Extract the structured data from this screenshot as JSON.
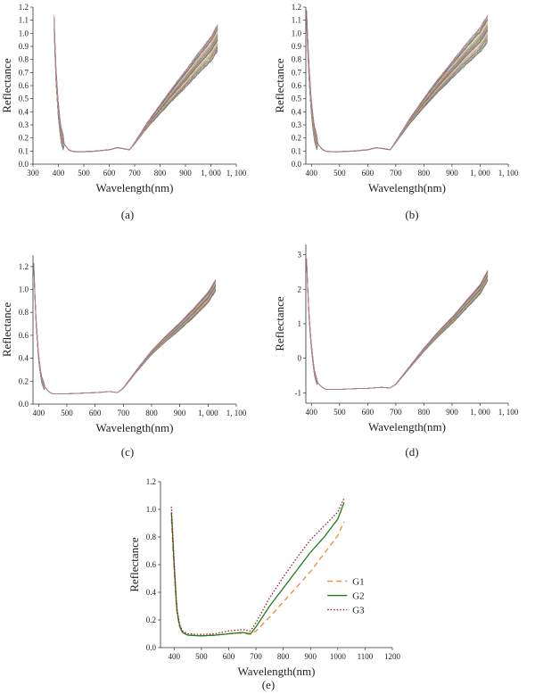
{
  "figure": {
    "panels": [
      {
        "id": "a",
        "caption": "(a)"
      },
      {
        "id": "b",
        "caption": "(b)"
      },
      {
        "id": "c",
        "caption": "(c)"
      },
      {
        "id": "d",
        "caption": "(d)"
      },
      {
        "id": "e",
        "caption": "(e)"
      }
    ]
  },
  "chart_data": [
    {
      "id": "a",
      "type": "line",
      "title": "",
      "caption": "(a)",
      "xlabel": "Wavelength(nm)",
      "ylabel": "Reflectance",
      "xlim": [
        300,
        1100
      ],
      "ylim": [
        0,
        1.2
      ],
      "xticks": [
        300,
        400,
        500,
        600,
        700,
        800,
        900,
        1000,
        1100
      ],
      "xtick_labels": [
        "300",
        "400",
        "500",
        "600",
        "700",
        "800",
        "900",
        "1, 000",
        "1, 100"
      ],
      "yticks": [
        0,
        0.1,
        0.2,
        0.3,
        0.4,
        0.5,
        0.6,
        0.7,
        0.8,
        0.9,
        1.0,
        1.1,
        1.2
      ],
      "ytick_labels": [
        "0.0",
        "0.1",
        "0.2",
        "0.3",
        "0.4",
        "0.5",
        "0.6",
        "0.7",
        "0.8",
        "0.9",
        "1.0",
        "1.1",
        "1.2"
      ],
      "description": "many overlaid multicolored raw reflectance spectra",
      "profile": {
        "x": [
          383,
          390,
          400,
          410,
          420,
          440,
          450,
          470,
          500,
          550,
          600,
          630,
          650,
          680,
          700,
          750,
          800,
          850,
          900,
          950,
          1000,
          1030
        ],
        "y": [
          1.08,
          0.7,
          0.4,
          0.23,
          0.16,
          0.11,
          0.1,
          0.095,
          0.095,
          0.1,
          0.11,
          0.125,
          0.12,
          0.11,
          0.16,
          0.3,
          0.42,
          0.54,
          0.65,
          0.77,
          0.88,
          0.98
        ]
      },
      "spread": 0.1
    },
    {
      "id": "b",
      "type": "line",
      "title": "",
      "caption": "(b)",
      "xlabel": "Wavelength(nm)",
      "ylabel": "Reflectance",
      "xlim": [
        380,
        1100
      ],
      "ylim": [
        0,
        1.2
      ],
      "xticks": [
        400,
        500,
        600,
        700,
        800,
        900,
        1000,
        1100
      ],
      "xtick_labels": [
        "400",
        "500",
        "600",
        "700",
        "800",
        "900",
        "1, 000",
        "1, 100"
      ],
      "yticks": [
        0,
        0.1,
        0.2,
        0.3,
        0.4,
        0.5,
        0.6,
        0.7,
        0.8,
        0.9,
        1.0,
        1.1,
        1.2
      ],
      "ytick_labels": [
        "0.0",
        "0.1",
        "0.2",
        "0.3",
        "0.4",
        "0.5",
        "0.6",
        "0.7",
        "0.8",
        "0.9",
        "1.0",
        "1.1",
        "1.2"
      ],
      "description": "many overlaid multicolored smoothed reflectance spectra",
      "profile": {
        "x": [
          383,
          390,
          400,
          410,
          420,
          440,
          450,
          470,
          500,
          550,
          600,
          630,
          650,
          680,
          700,
          750,
          800,
          850,
          900,
          950,
          1000,
          1030
        ],
        "y": [
          1.12,
          0.75,
          0.42,
          0.24,
          0.16,
          0.11,
          0.1,
          0.095,
          0.095,
          0.1,
          0.11,
          0.125,
          0.12,
          0.11,
          0.17,
          0.33,
          0.47,
          0.6,
          0.72,
          0.84,
          0.95,
          1.05
        ]
      },
      "spread": 0.1
    },
    {
      "id": "c",
      "type": "line",
      "title": "",
      "caption": "(c)",
      "xlabel": "Wavelength(nm)",
      "ylabel": "Reflectance",
      "xlim": [
        380,
        1100
      ],
      "ylim": [
        0,
        1.3
      ],
      "xticks": [
        400,
        500,
        600,
        700,
        800,
        900,
        1000,
        1100
      ],
      "xtick_labels": [
        "400",
        "500",
        "600",
        "700",
        "800",
        "900",
        "1, 000",
        "1, 100"
      ],
      "yticks": [
        0,
        0.2,
        0.4,
        0.6,
        0.8,
        1.0,
        1.2
      ],
      "ytick_labels": [
        "0.0",
        "0.2",
        "0.4",
        "0.6",
        "0.8",
        "1.0",
        "1.2"
      ],
      "description": "many overlaid multicolored normalized reflectance spectra",
      "profile": {
        "x": [
          383,
          390,
          400,
          410,
          420,
          440,
          450,
          470,
          500,
          550,
          600,
          630,
          650,
          680,
          700,
          750,
          800,
          850,
          900,
          950,
          1000,
          1030
        ],
        "y": [
          1.2,
          0.75,
          0.4,
          0.22,
          0.15,
          0.1,
          0.09,
          0.09,
          0.09,
          0.095,
          0.1,
          0.105,
          0.11,
          0.1,
          0.14,
          0.3,
          0.45,
          0.57,
          0.68,
          0.8,
          0.93,
          1.05
        ]
      },
      "spread": 0.05
    },
    {
      "id": "d",
      "type": "line",
      "title": "",
      "caption": "(d)",
      "xlabel": "Wavelength(nm)",
      "ylabel": "Reflectance",
      "xlim": [
        380,
        1100
      ],
      "ylim": [
        -1.3,
        3.3
      ],
      "xticks": [
        400,
        500,
        600,
        700,
        800,
        900,
        1000,
        1100
      ],
      "xtick_labels": [
        "400",
        "500",
        "600",
        "700",
        "800",
        "900",
        "1, 000",
        "1, 100"
      ],
      "yticks": [
        -1,
        0,
        1,
        2,
        3
      ],
      "ytick_labels": [
        "-1",
        "0",
        "1",
        "2",
        "3"
      ],
      "description": "many overlaid multicolored standardized reflectance spectra",
      "profile": {
        "x": [
          383,
          390,
          400,
          410,
          420,
          440,
          450,
          470,
          500,
          550,
          600,
          630,
          650,
          680,
          700,
          750,
          800,
          850,
          900,
          950,
          1000,
          1030
        ],
        "y": [
          2.8,
          1.4,
          0.3,
          -0.4,
          -0.7,
          -0.85,
          -0.9,
          -0.9,
          -0.9,
          -0.88,
          -0.87,
          -0.85,
          -0.84,
          -0.86,
          -0.75,
          -0.25,
          0.25,
          0.7,
          1.1,
          1.55,
          2.0,
          2.45
        ]
      },
      "spread": 0.15
    },
    {
      "id": "e",
      "type": "line",
      "title": "",
      "caption": "(e)",
      "xlabel": "Wavelength(nm)",
      "ylabel": "Reflectance",
      "xlim": [
        350,
        1200
      ],
      "ylim": [
        0,
        1.2
      ],
      "xticks": [
        400,
        500,
        600,
        700,
        800,
        900,
        1000,
        1100,
        1200
      ],
      "xtick_labels": [
        "400",
        "500",
        "600",
        "700",
        "800",
        "900",
        "1000",
        "1100",
        "1200"
      ],
      "yticks": [
        0,
        0.2,
        0.4,
        0.6,
        0.8,
        1.0,
        1.2
      ],
      "ytick_labels": [
        "0.0",
        "0.2",
        "0.4",
        "0.6",
        "0.8",
        "1.0",
        "1.2"
      ],
      "legend": "right",
      "series": [
        {
          "name": "G1",
          "color": "#f08a2c",
          "dash": "6,4",
          "x": [
            390,
            400,
            410,
            420,
            430,
            450,
            500,
            550,
            600,
            650,
            680,
            700,
            750,
            800,
            850,
            900,
            950,
            1000,
            1025
          ],
          "y": [
            0.93,
            0.55,
            0.25,
            0.15,
            0.11,
            0.09,
            0.085,
            0.09,
            0.1,
            0.105,
            0.095,
            0.12,
            0.22,
            0.33,
            0.44,
            0.55,
            0.68,
            0.81,
            0.92
          ]
        },
        {
          "name": "G2",
          "color": "#1e7d1e",
          "dash": "",
          "x": [
            390,
            400,
            410,
            420,
            430,
            450,
            500,
            550,
            600,
            650,
            680,
            700,
            750,
            800,
            850,
            900,
            950,
            1000,
            1025
          ],
          "y": [
            0.98,
            0.6,
            0.27,
            0.16,
            0.11,
            0.09,
            0.085,
            0.09,
            0.1,
            0.11,
            0.1,
            0.15,
            0.3,
            0.43,
            0.56,
            0.69,
            0.8,
            0.93,
            1.06
          ]
        },
        {
          "name": "G3",
          "color": "#9a1f2a",
          "dash": "1.5,2",
          "x": [
            390,
            400,
            410,
            420,
            430,
            450,
            500,
            550,
            600,
            650,
            680,
            700,
            750,
            800,
            850,
            900,
            950,
            1000,
            1025
          ],
          "y": [
            1.02,
            0.62,
            0.28,
            0.17,
            0.12,
            0.1,
            0.095,
            0.1,
            0.12,
            0.13,
            0.12,
            0.18,
            0.36,
            0.51,
            0.65,
            0.78,
            0.88,
            0.98,
            1.09
          ]
        }
      ]
    }
  ]
}
